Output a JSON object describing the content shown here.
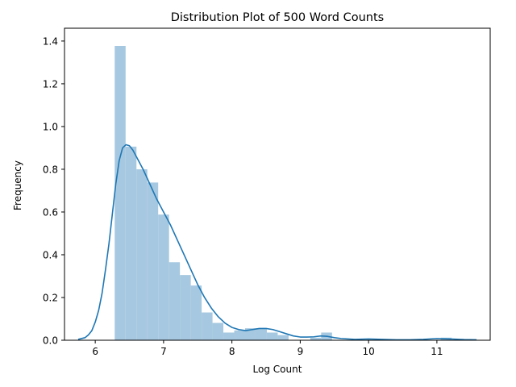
{
  "chart_data": {
    "type": "bar",
    "title": "Distribution Plot of 500 Word Counts",
    "xlabel": "Log Count",
    "ylabel": "Frequency",
    "xlim": [
      5.55,
      11.78
    ],
    "ylim": [
      0,
      1.46
    ],
    "xticks": [
      6,
      7,
      8,
      9,
      10,
      11
    ],
    "yticks": [
      0.0,
      0.2,
      0.4,
      0.6,
      0.8,
      1.0,
      1.2,
      1.4
    ],
    "grid": false,
    "histogram": {
      "bin_edges": [
        6.285,
        6.444,
        6.603,
        6.762,
        6.921,
        7.08,
        7.239,
        7.398,
        7.557,
        7.716,
        7.875,
        8.034,
        8.193,
        8.352,
        8.511,
        8.67,
        8.829,
        8.988,
        9.147,
        9.306,
        9.465,
        9.624,
        9.783,
        9.942,
        10.101,
        10.26,
        10.419,
        10.578,
        10.737,
        10.896,
        11.055,
        11.214,
        11.373,
        11.532
      ],
      "values": [
        1.377,
        0.906,
        0.8,
        0.738,
        0.588,
        0.365,
        0.305,
        0.256,
        0.13,
        0.081,
        0.036,
        0.046,
        0.056,
        0.056,
        0.036,
        0.024,
        0.0,
        0.0,
        0.012,
        0.036,
        0.0,
        0.0,
        0.0,
        0.0,
        0.0,
        0.0,
        0.0,
        0.0,
        0.0,
        0.0,
        0.012,
        0.0,
        0.0
      ],
      "color": "#a6c8e0"
    },
    "kde": {
      "x": [
        5.75,
        5.85,
        5.9,
        5.95,
        6.0,
        6.05,
        6.1,
        6.15,
        6.2,
        6.25,
        6.3,
        6.35,
        6.4,
        6.45,
        6.5,
        6.55,
        6.6,
        6.7,
        6.8,
        6.9,
        7.0,
        7.1,
        7.2,
        7.3,
        7.4,
        7.5,
        7.6,
        7.7,
        7.8,
        7.9,
        8.0,
        8.1,
        8.2,
        8.3,
        8.4,
        8.5,
        8.6,
        8.7,
        8.8,
        8.9,
        9.0,
        9.1,
        9.2,
        9.3,
        9.4,
        9.5,
        9.6,
        9.8,
        10.0,
        10.2,
        10.4,
        10.6,
        10.8,
        11.0,
        11.2,
        11.4,
        11.58
      ],
      "y": [
        0.004,
        0.012,
        0.025,
        0.045,
        0.085,
        0.14,
        0.22,
        0.33,
        0.45,
        0.59,
        0.73,
        0.84,
        0.9,
        0.915,
        0.91,
        0.89,
        0.86,
        0.8,
        0.73,
        0.66,
        0.6,
        0.54,
        0.47,
        0.4,
        0.33,
        0.26,
        0.2,
        0.15,
        0.11,
        0.08,
        0.06,
        0.05,
        0.045,
        0.05,
        0.055,
        0.055,
        0.05,
        0.04,
        0.03,
        0.02,
        0.015,
        0.015,
        0.016,
        0.02,
        0.018,
        0.012,
        0.008,
        0.004,
        0.006,
        0.004,
        0.002,
        0.002,
        0.004,
        0.008,
        0.006,
        0.003,
        0.002
      ],
      "color": "#1f77b4"
    }
  }
}
